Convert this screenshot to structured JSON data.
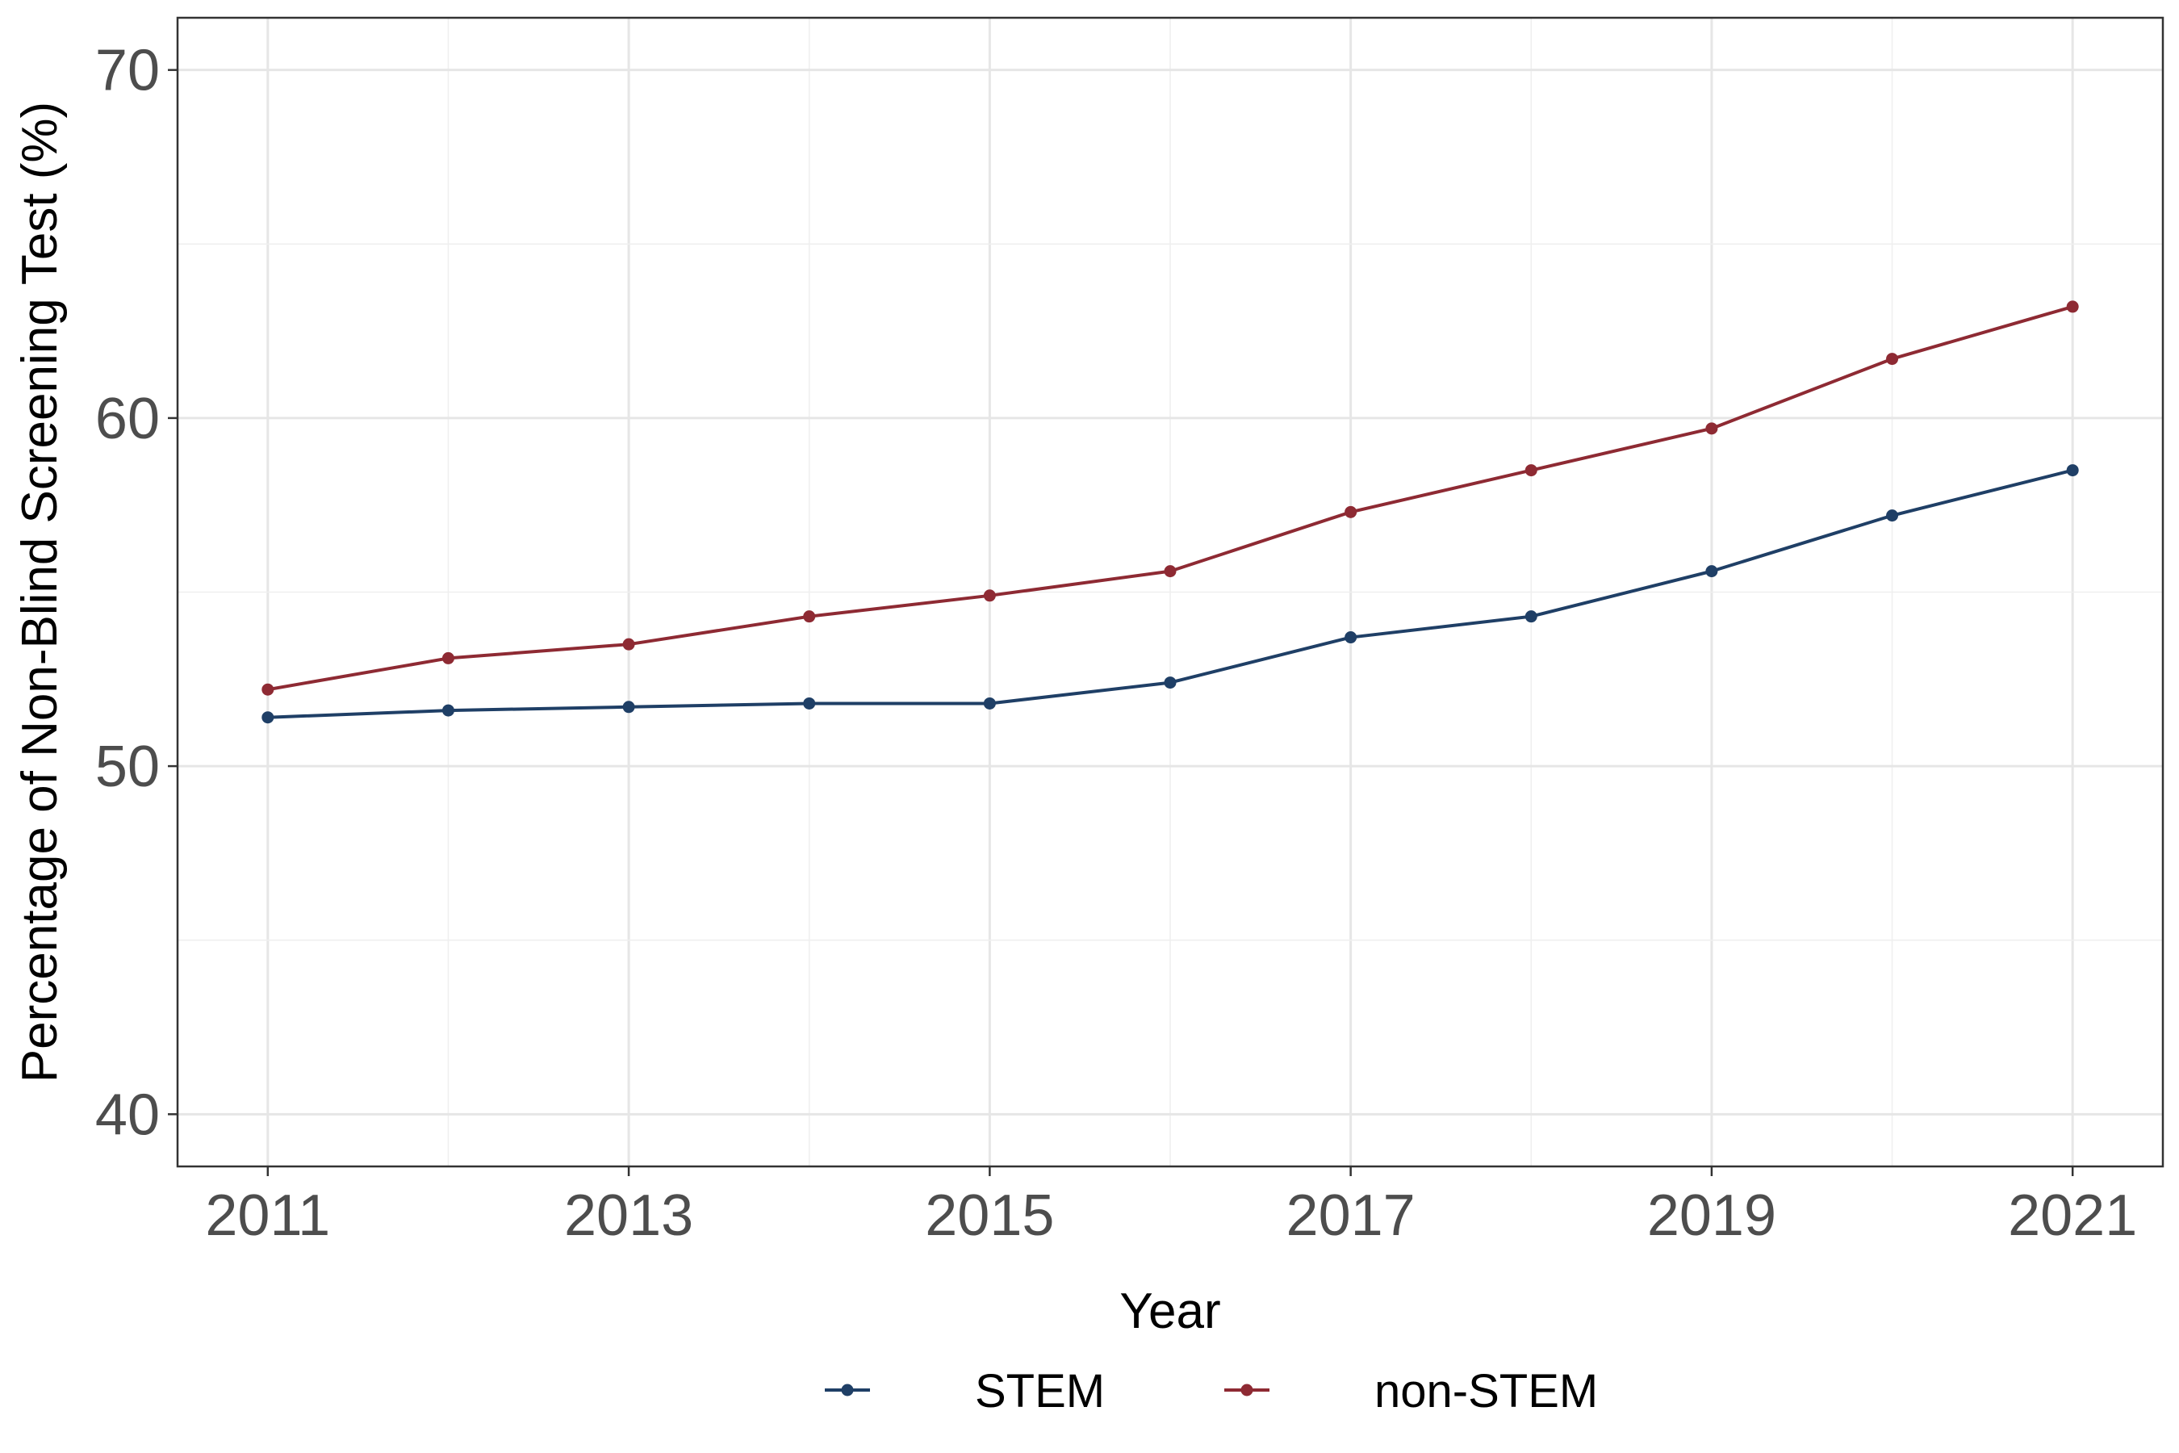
{
  "chart_data": {
    "type": "line",
    "title": "",
    "xlabel": "Year",
    "ylabel": "Percentage of Non-Blind Screening Test (%)",
    "xlim": [
      2010.5,
      2021.5
    ],
    "ylim": [
      38.5,
      71.5
    ],
    "x_ticks": [
      2011,
      2013,
      2015,
      2017,
      2019,
      2021
    ],
    "y_ticks": [
      40,
      50,
      60,
      70
    ],
    "grid": true,
    "legend_position": "bottom",
    "x": [
      2011,
      2012,
      2013,
      2014,
      2015,
      2016,
      2017,
      2018,
      2019,
      2020,
      2021
    ],
    "series": [
      {
        "name": "STEM",
        "color": "#1f3f66",
        "values": [
          51.4,
          51.6,
          51.7,
          51.8,
          51.8,
          52.4,
          53.7,
          54.3,
          55.6,
          57.2,
          58.5
        ]
      },
      {
        "name": "non-STEM",
        "color": "#8e2a33",
        "values": [
          52.2,
          53.1,
          53.5,
          54.3,
          54.9,
          55.6,
          57.3,
          58.5,
          59.7,
          61.7,
          63.2
        ]
      }
    ]
  }
}
